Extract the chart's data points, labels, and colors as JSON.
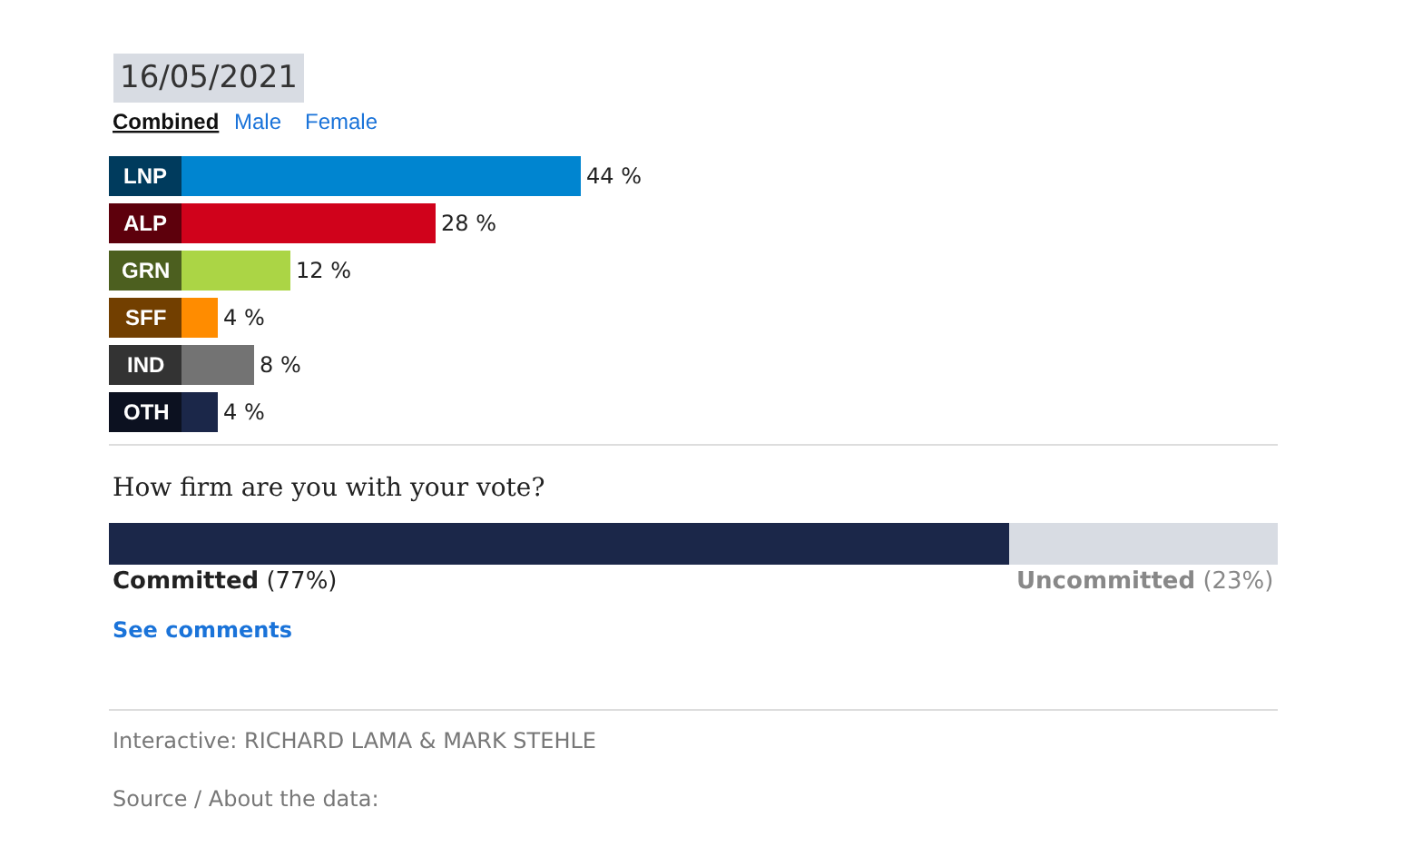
{
  "chart_data": [
    {
      "type": "bar",
      "orientation": "horizontal",
      "categories": [
        "LNP",
        "ALP",
        "GRN",
        "SFF",
        "IND",
        "OTH"
      ],
      "values": [
        44,
        28,
        12,
        4,
        8,
        4
      ],
      "colors": [
        "#0085d0",
        "#d0021b",
        "#abd545",
        "#ff8c00",
        "#737373",
        "#1b2749"
      ],
      "value_labels": [
        "44 %",
        "28 %",
        "12 %",
        "4 %",
        "8 %",
        "4 %"
      ],
      "annotations": [
        "16/05/2021",
        "Combined",
        "Male",
        "Female"
      ]
    },
    {
      "type": "bar",
      "orientation": "horizontal",
      "stacked": true,
      "title": "How firm are you with your vote?",
      "categories": [
        null
      ],
      "series": [
        {
          "name": "Committed",
          "color": "#1b2749",
          "values": [
            77
          ],
          "value_labels": [
            "(77%)"
          ]
        },
        {
          "name": "Uncommitted",
          "color": "#d8dce3",
          "values": [
            23
          ],
          "value_labels": [
            "(23%)"
          ]
        }
      ],
      "annotations": [
        "See comments",
        "Interactive: RICHARD LAMA & MARK STEHLE",
        "Source / About the data:"
      ]
    }
  ]
}
